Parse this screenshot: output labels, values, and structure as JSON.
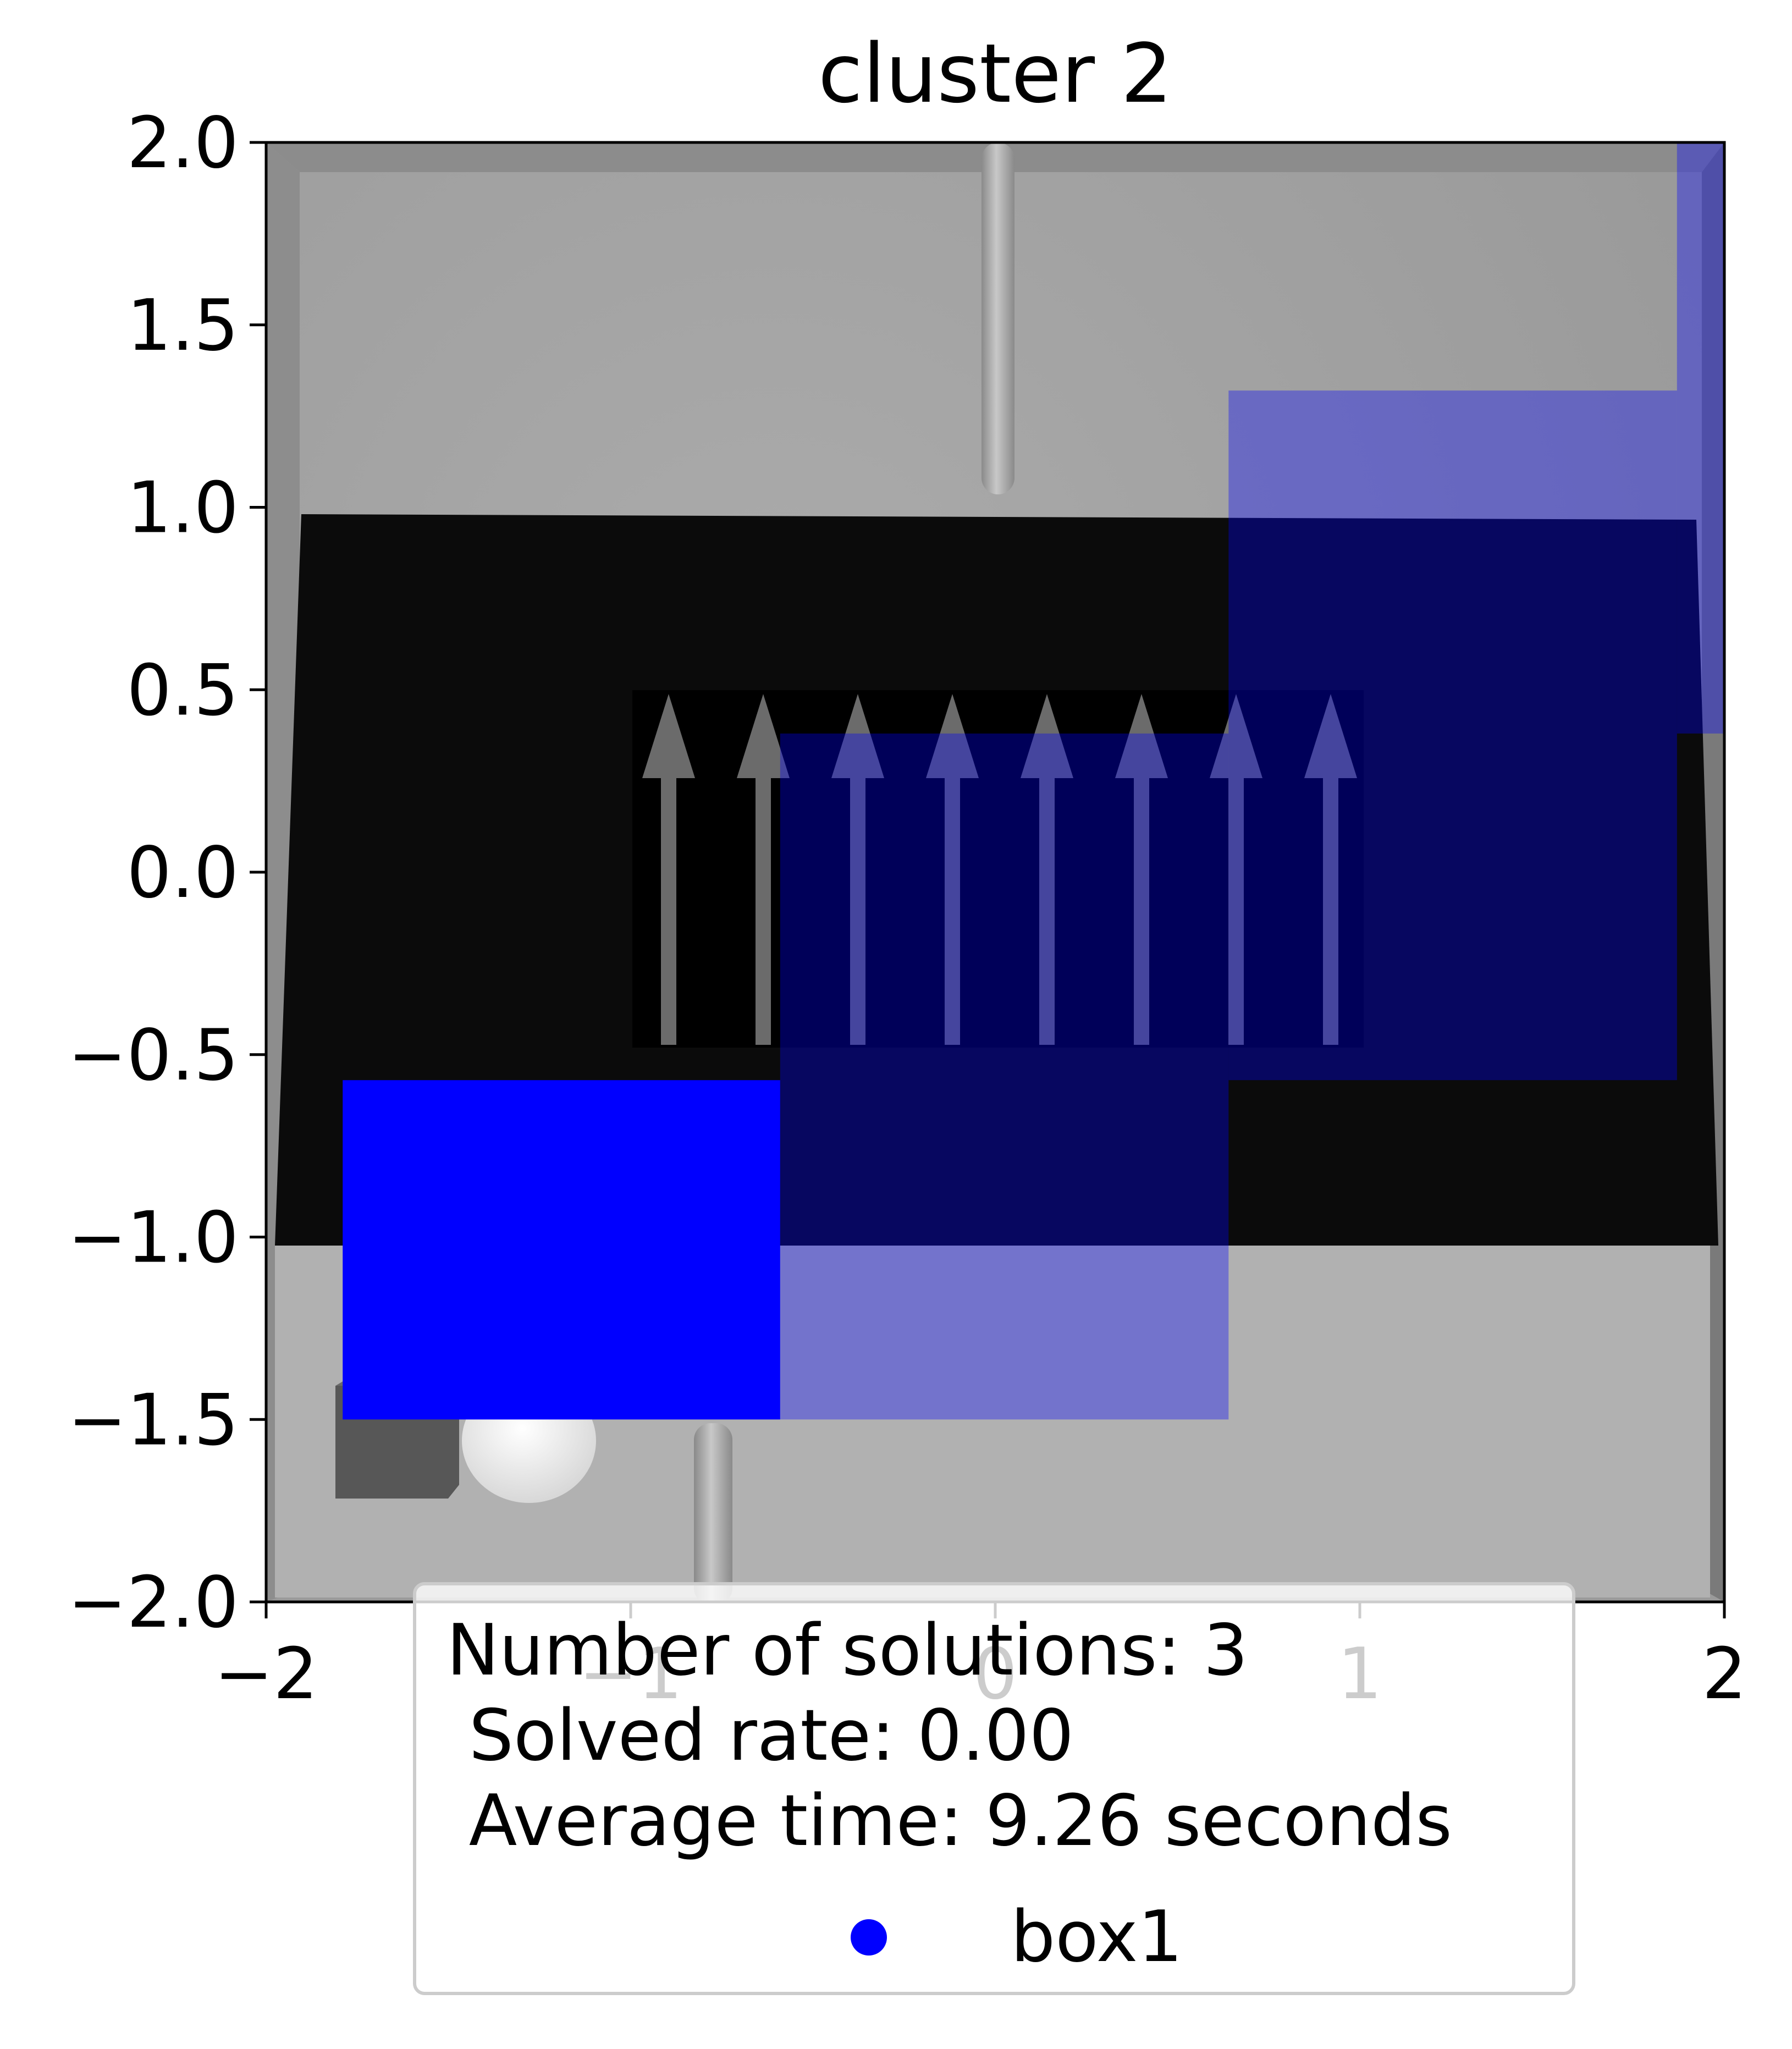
{
  "chart_data": {
    "type": "scatter",
    "title": "cluster 2",
    "xlabel": "",
    "ylabel": "",
    "xlim": [
      -2,
      2
    ],
    "ylim": [
      -2,
      2
    ],
    "xticks": [
      "−2",
      "−1",
      "0",
      "1",
      "2"
    ],
    "yticks": [
      "2.0",
      "1.5",
      "1.0",
      "0.5",
      "0.0",
      "−0.5",
      "−1.0",
      "−1.5",
      "−2.0"
    ],
    "grid": false,
    "background": "top-down rendered scene image (grey floor, black conveyor belt with white upward arrows, grey poles, grey box and white ball bottom-left)",
    "series": [
      {
        "name": "box1",
        "color": "#0000ff",
        "regions": [
          {
            "x": [
              -1.79,
              -0.59
            ],
            "y": [
              -1.5,
              -0.57
            ],
            "opacity": 1.0
          },
          {
            "x": [
              -0.59,
              0.64
            ],
            "y": [
              -1.5,
              0.38
            ],
            "opacity": 0.35
          },
          {
            "x": [
              0.64,
              1.87
            ],
            "y": [
              -0.57,
              1.32
            ],
            "opacity": 0.35
          },
          {
            "x": [
              1.87,
              2.0
            ],
            "y": [
              0.38,
              2.0
            ],
            "opacity": 0.35
          }
        ]
      }
    ],
    "legend": {
      "position": "bottom-center",
      "lines": [
        "Number of solutions: 3",
        " Solved rate: 0.00",
        " Average time: 9.26 seconds"
      ],
      "entry": "box1"
    }
  }
}
